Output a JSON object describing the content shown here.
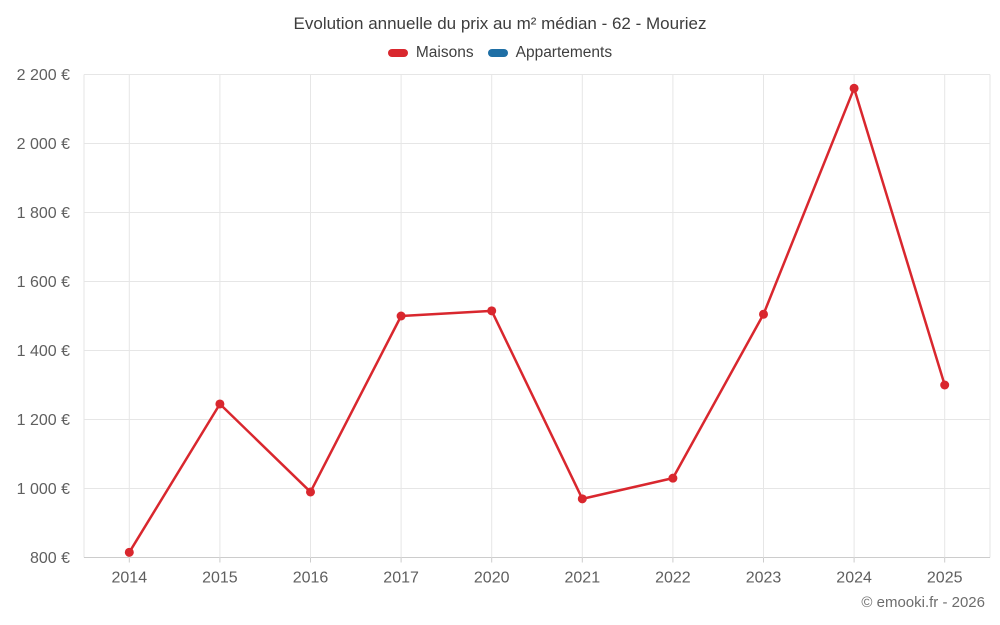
{
  "title": "Evolution annuelle du prix au m² médian - 62 - Mouriez",
  "legend": [
    {
      "label": "Maisons",
      "color": "#d9272e"
    },
    {
      "label": "Appartements",
      "color": "#1f6fa5"
    }
  ],
  "footer": "© emooki.fr - 2026",
  "colors": {
    "grid": "#e6e6e6",
    "axis": "#cccccc",
    "axis_labels": "#5f5f5f",
    "title": "#3d3d3d",
    "maisons": "#d9272e",
    "appartements": "#1f6fa5"
  },
  "chart_data": {
    "type": "line",
    "title": "Evolution annuelle du prix au m² médian - 62 - Mouriez",
    "categories": [
      "2014",
      "2015",
      "2016",
      "2017",
      "2020",
      "2021",
      "2022",
      "2023",
      "2024",
      "2025"
    ],
    "series": [
      {
        "name": "Maisons",
        "color": "#d9272e",
        "values": [
          815,
          1245,
          990,
          1500,
          1515,
          970,
          1030,
          1505,
          2160,
          1300
        ]
      },
      {
        "name": "Appartements",
        "color": "#1f6fa5",
        "values": []
      }
    ],
    "xlabel": "",
    "ylabel": "",
    "ylim": [
      800,
      2200
    ],
    "ytick_step": 200,
    "ytick_suffix": " €",
    "grid": true,
    "legend_position": "top",
    "marker_radius": 4.5,
    "line_width": 2.5
  }
}
